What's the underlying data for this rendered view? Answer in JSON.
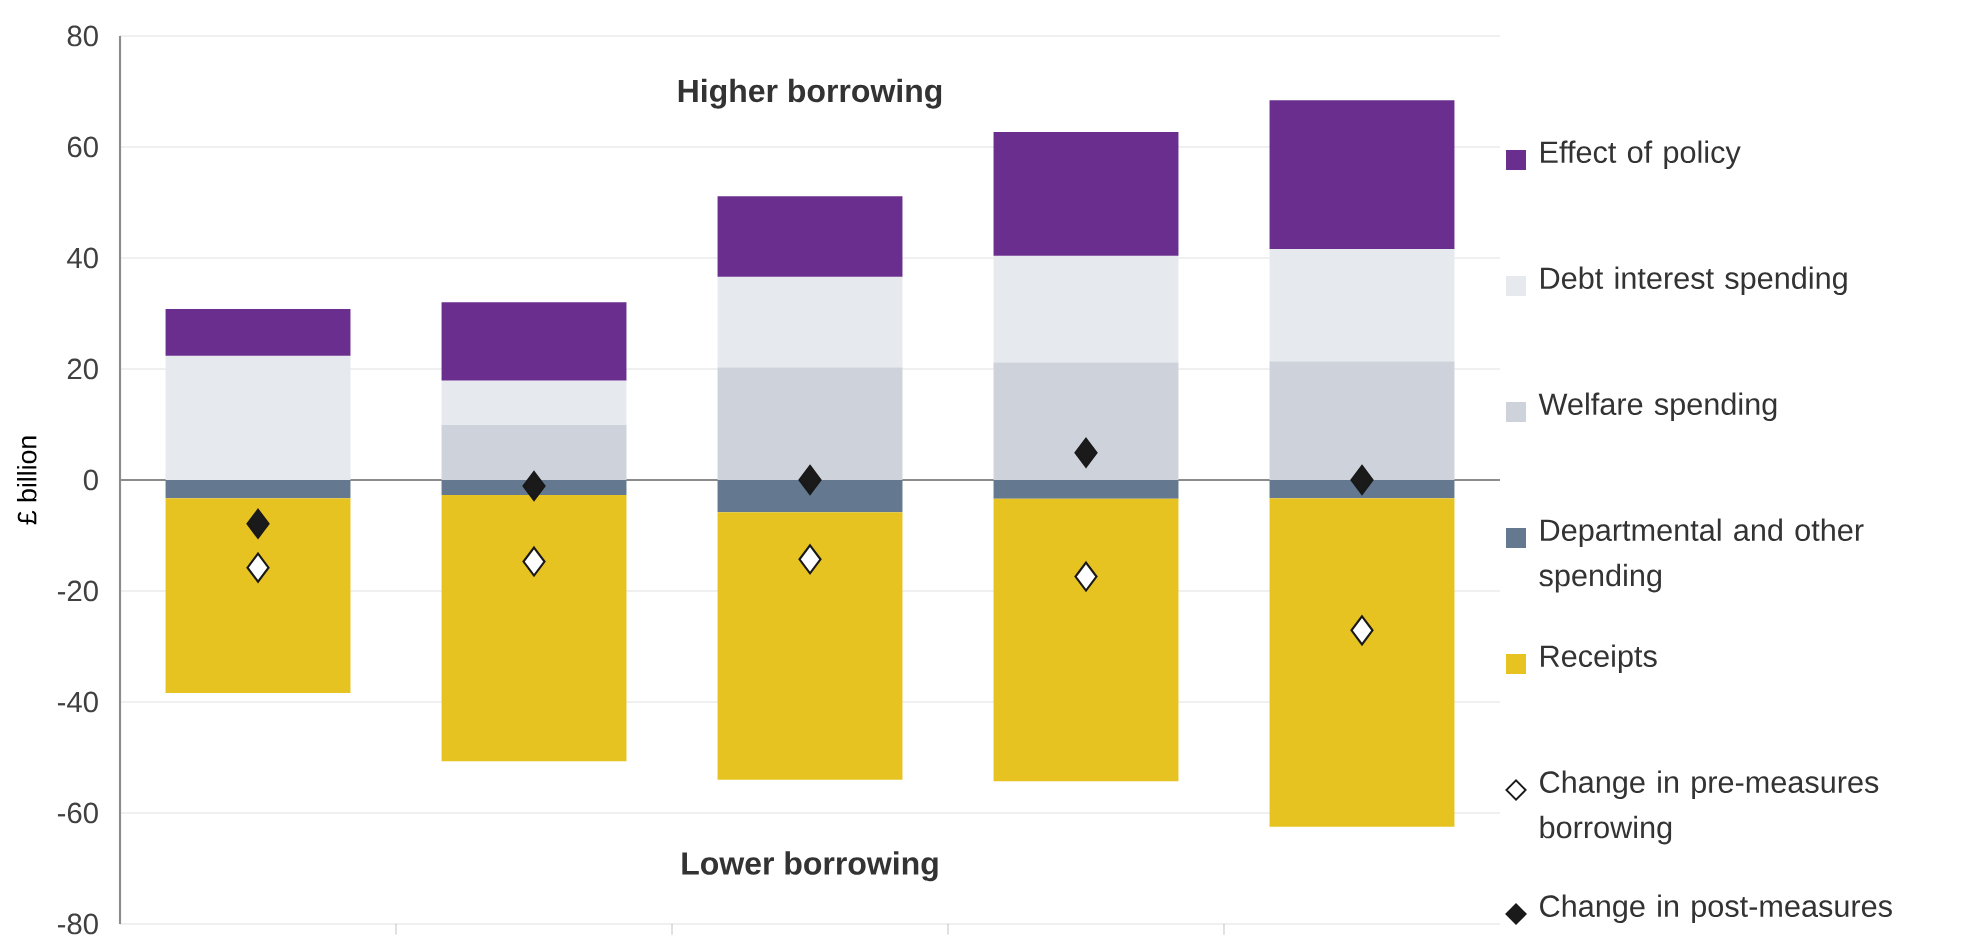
{
  "chart_data": {
    "type": "bar",
    "stacked": true,
    "ylabel": "£ billion",
    "categories": [
      null,
      null,
      null,
      null,
      null
    ],
    "series": [
      {
        "name": "Welfare spending",
        "color": "#cdd2db",
        "values": [
          0,
          10.0,
          20.3,
          21.2,
          21.4
        ]
      },
      {
        "name": "Debt interest spending",
        "color": "#e6e9ee",
        "values": [
          22.4,
          7.9,
          16.3,
          19.2,
          20.2
        ]
      },
      {
        "name": "Effect of policy",
        "color": "#6a2f8e",
        "values": [
          8.4,
          14.1,
          14.5,
          22.3,
          26.8
        ]
      },
      {
        "name": "Departmental and other spending",
        "color": "#64798f",
        "values": [
          -3.3,
          -2.7,
          -5.8,
          -3.4,
          -3.3
        ]
      },
      {
        "name": "Receipts",
        "color": "#e7c322",
        "values": [
          -35.1,
          -48.0,
          -48.2,
          -50.9,
          -59.2
        ]
      },
      {
        "name": "Change in pre-measures borrowing",
        "type": "scatter",
        "color": "#ffffff",
        "values": [
          -15.8,
          -14.7,
          -14.3,
          -17.4,
          -27.1
        ]
      },
      {
        "name": "Change in post-measures",
        "type": "scatter",
        "color": "#1a1a1a",
        "values": [
          -7.9,
          -1.1,
          0,
          4.9,
          0
        ]
      }
    ],
    "marker": "diamond",
    "ylim": [
      -80,
      80
    ],
    "yticks": [
      -80,
      -60,
      -40,
      -20,
      0,
      20,
      40,
      60,
      80
    ],
    "grid": "y",
    "legend": "right",
    "annotations": [
      "Higher borrowing",
      "Lower borrowing"
    ]
  }
}
